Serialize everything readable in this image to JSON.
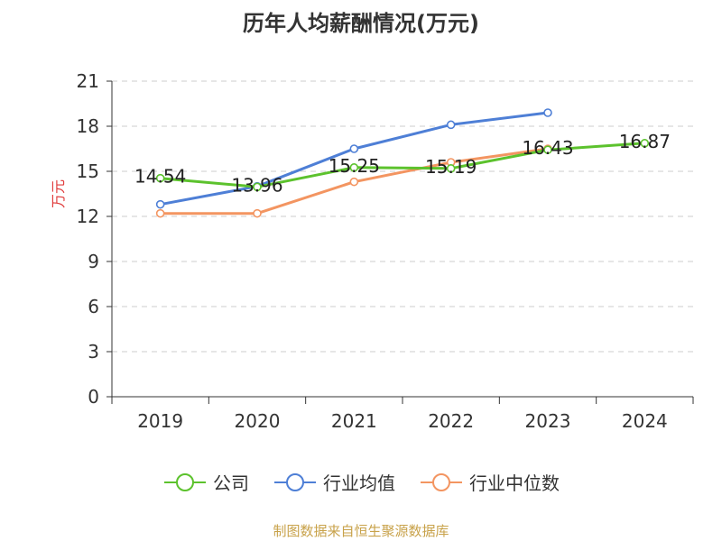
{
  "title": "历年人均薪酬情况(万元)",
  "footer": {
    "text": "制图数据来自恒生聚源数据库",
    "color": "#c8a24a"
  },
  "chart_data": {
    "type": "line",
    "title": "历年人均薪酬情况(万元)",
    "ylabel": "万元",
    "xlabel": "",
    "categories": [
      "2019",
      "2020",
      "2021",
      "2022",
      "2023",
      "2024"
    ],
    "ylim": [
      0,
      21
    ],
    "yticks": [
      "0",
      "3",
      "6",
      "9",
      "12",
      "15",
      "18",
      "21"
    ],
    "grid": true,
    "legend_position": "bottom",
    "series": [
      {
        "name": "公司",
        "color": "#5cc22d",
        "values": [
          14.54,
          13.96,
          15.25,
          15.19,
          16.43,
          16.87
        ],
        "labels": [
          "14.54",
          "13.96",
          "15.25",
          "15.19",
          "16.43",
          "16.87"
        ]
      },
      {
        "name": "行业均值",
        "color": "#4e7fd6",
        "values": [
          12.8,
          14.0,
          16.5,
          18.1,
          18.9,
          null
        ]
      },
      {
        "name": "行业中位数",
        "color": "#f39561",
        "values": [
          12.2,
          12.2,
          14.3,
          15.6,
          16.5,
          null
        ]
      }
    ]
  }
}
